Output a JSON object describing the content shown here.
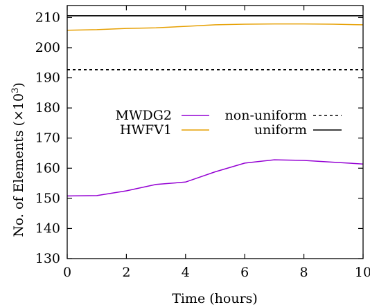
{
  "chart_data": {
    "type": "line",
    "xlabel": "Time (hours)",
    "ylabel": "No. of Elements (×10",
    "ylabel_sup": "3",
    "ylabel_close": ")",
    "xlim": [
      0,
      10
    ],
    "ylim": [
      130,
      214
    ],
    "xticks": [
      0,
      2,
      4,
      6,
      8,
      10
    ],
    "yticks": [
      130,
      140,
      150,
      160,
      170,
      180,
      190,
      200,
      210
    ],
    "grid": false,
    "legend_placement": "center",
    "series": [
      {
        "name": "MWDG2",
        "color": "#9400d3",
        "style": "solid",
        "x": [
          0,
          1,
          2,
          3,
          4,
          5,
          6,
          7,
          8,
          9,
          10
        ],
        "values": [
          150.8,
          150.9,
          152.5,
          154.6,
          155.4,
          158.8,
          161.7,
          162.8,
          162.6,
          162.0,
          161.4
        ]
      },
      {
        "name": "HWFV1",
        "color": "#e69f00",
        "style": "solid",
        "x": [
          0,
          1,
          2,
          3,
          4,
          5,
          6,
          7,
          8,
          9,
          10
        ],
        "values": [
          205.8,
          206.0,
          206.4,
          206.6,
          207.1,
          207.6,
          207.8,
          207.9,
          207.9,
          207.8,
          207.6
        ]
      },
      {
        "name": "non-uniform",
        "color": "#000000",
        "style": "dashed",
        "x": [
          0,
          10
        ],
        "values": [
          192.7,
          192.7
        ]
      },
      {
        "name": "uniform",
        "color": "#000000",
        "style": "solid",
        "x": [
          0,
          10
        ],
        "values": [
          210.6,
          210.6
        ]
      }
    ]
  }
}
